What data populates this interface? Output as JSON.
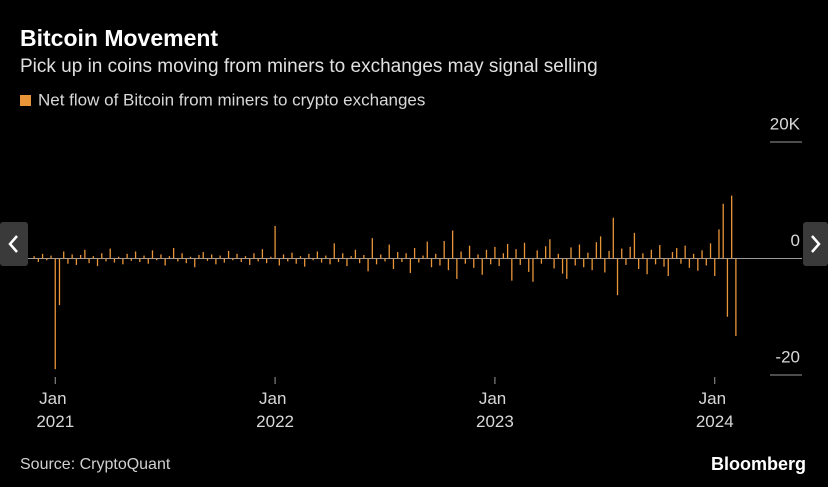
{
  "chart_data": {
    "type": "bar",
    "title": "Bitcoin Movement",
    "subtitle": "Pick up in coins moving from miners to exchanges may signal selling",
    "source": "Source: CryptoQuant",
    "brand": "Bloomberg",
    "categories": [
      null,
      null,
      null,
      null,
      null,
      "Jan 2021",
      null,
      null,
      null,
      null,
      null,
      null,
      null,
      null,
      null,
      null,
      null,
      null,
      null,
      null,
      null,
      null,
      null,
      null,
      null,
      null,
      null,
      null,
      null,
      null,
      null,
      null,
      null,
      null,
      null,
      null,
      null,
      null,
      null,
      null,
      null,
      null,
      null,
      null,
      null,
      null,
      null,
      null,
      null,
      null,
      null,
      null,
      null,
      null,
      null,
      null,
      null,
      "Jan 2022",
      null,
      null,
      null,
      null,
      null,
      null,
      null,
      null,
      null,
      null,
      null,
      null,
      null,
      null,
      null,
      null,
      null,
      null,
      null,
      null,
      null,
      null,
      null,
      null,
      null,
      null,
      null,
      null,
      null,
      null,
      null,
      null,
      null,
      null,
      null,
      null,
      null,
      null,
      null,
      null,
      null,
      null,
      null,
      null,
      null,
      null,
      null,
      null,
      null,
      null,
      null,
      "Jan 2023",
      null,
      null,
      null,
      null,
      null,
      null,
      null,
      null,
      null,
      null,
      null,
      null,
      null,
      null,
      null,
      null,
      null,
      null,
      null,
      null,
      null,
      null,
      null,
      null,
      null,
      null,
      null,
      null,
      null,
      null,
      null,
      null,
      null,
      null,
      null,
      null,
      null,
      null,
      null,
      null,
      null,
      null,
      null,
      null,
      null,
      null,
      null,
      null,
      null,
      null,
      null,
      "Jan 2024",
      null,
      null,
      null,
      null,
      null
    ],
    "series": [
      {
        "name": "Net flow of Bitcoin from miners to crypto exchanges",
        "color": "#e8953a",
        "values": [
          400,
          -600,
          800,
          -300,
          500,
          -19000,
          -8000,
          1200,
          -900,
          700,
          -1100,
          600,
          1500,
          -800,
          400,
          -1300,
          900,
          -500,
          1700,
          -700,
          300,
          -1000,
          800,
          -400,
          1200,
          -600,
          500,
          -900,
          1400,
          -300,
          700,
          -1200,
          400,
          1800,
          -500,
          900,
          -800,
          300,
          -1500,
          600,
          1100,
          -400,
          700,
          -1000,
          500,
          -700,
          1300,
          -300,
          800,
          -600,
          400,
          -1100,
          900,
          -500,
          1600,
          -800,
          300,
          5600,
          -1200,
          700,
          -500,
          1000,
          -900,
          400,
          -1400,
          800,
          -300,
          1200,
          -700,
          500,
          -1000,
          2600,
          -600,
          900,
          -1300,
          400,
          1500,
          -800,
          600,
          -2200,
          3500,
          -1000,
          700,
          -500,
          2400,
          -1800,
          1100,
          -600,
          900,
          -2500,
          1800,
          -700,
          500,
          2900,
          -1500,
          800,
          -1200,
          3000,
          -2000,
          4800,
          -3500,
          1200,
          -900,
          2200,
          -1600,
          700,
          -2800,
          1500,
          -1000,
          2000,
          -1300,
          900,
          2500,
          -3800,
          1600,
          -1100,
          2700,
          -2300,
          -4000,
          1400,
          -900,
          2100,
          3300,
          -1700,
          800,
          -2600,
          -3500,
          1900,
          -1200,
          2400,
          -1500,
          1000,
          -2000,
          2800,
          3800,
          -2400,
          1300,
          7000,
          -6300,
          1700,
          -1100,
          2000,
          4400,
          -1800,
          900,
          -2700,
          1500,
          -1000,
          2300,
          -1400,
          -3000,
          1100,
          1800,
          -900,
          2200,
          -1600,
          800,
          -2100,
          1400,
          -1200,
          2600,
          -3000,
          5000,
          9400,
          -10000,
          10800,
          -13300
        ]
      }
    ],
    "ylim": [
      -20000,
      20000
    ],
    "yticks": [
      {
        "value": 20000,
        "label": "20K"
      },
      0,
      {
        "value": -20000,
        "label": "-20"
      }
    ],
    "grid": true,
    "legend": "top-left"
  }
}
